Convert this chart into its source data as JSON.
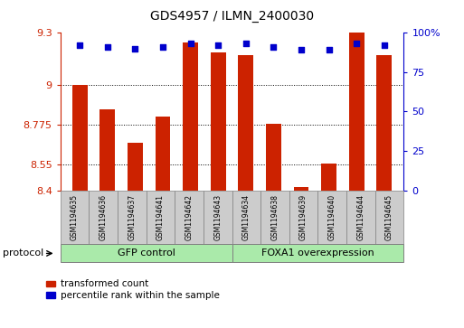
{
  "title": "GDS4957 / ILMN_2400030",
  "samples": [
    "GSM1194635",
    "GSM1194636",
    "GSM1194637",
    "GSM1194641",
    "GSM1194642",
    "GSM1194643",
    "GSM1194634",
    "GSM1194638",
    "GSM1194639",
    "GSM1194640",
    "GSM1194644",
    "GSM1194645"
  ],
  "transformed_count": [
    9.0,
    8.86,
    8.67,
    8.82,
    9.245,
    9.19,
    9.17,
    8.78,
    8.42,
    8.55,
    9.3,
    9.17
  ],
  "percentile_rank": [
    92,
    91,
    90,
    91,
    93,
    92,
    93,
    91,
    89,
    89,
    93,
    92
  ],
  "ylim_left": [
    8.4,
    9.3
  ],
  "yticks_left": [
    8.4,
    8.55,
    8.775,
    9.0,
    9.3
  ],
  "ytick_labels_left": [
    "8.4",
    "8.55",
    "8.775",
    "9",
    "9.3"
  ],
  "yticks_right_pct": [
    0,
    25,
    50,
    75,
    100
  ],
  "ytick_labels_right": [
    "0",
    "25",
    "50",
    "75",
    "100%"
  ],
  "bar_color": "#cc2200",
  "dot_color": "#0000cc",
  "group1_label": "GFP control",
  "group2_label": "FOXA1 overexpression",
  "group1_count": 6,
  "group2_count": 6,
  "group_box_color": "#aaeaaa",
  "sample_box_color": "#cccccc",
  "bar_width": 0.55,
  "legend_red_label": "transformed count",
  "legend_blue_label": "percentile rank within the sample",
  "protocol_label": "protocol"
}
